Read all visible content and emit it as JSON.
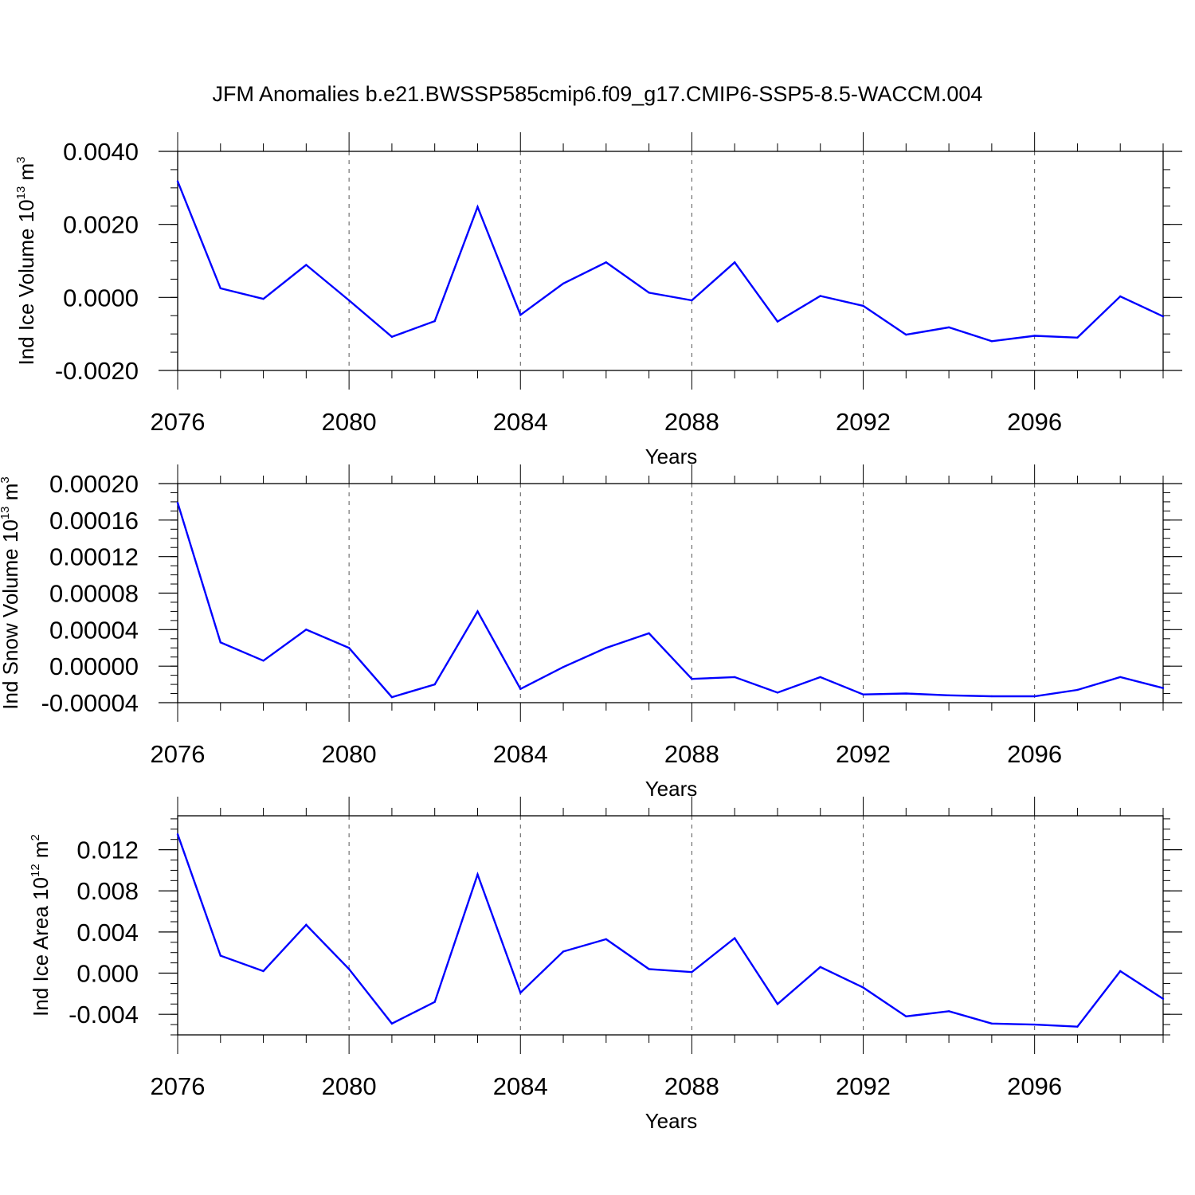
{
  "figure_title": "JFM Anomalies b.e21.BWSSP585cmip6.f09_g17.CMIP6-SSP5-8.5-WACCM.004",
  "line_color": "#0000ff",
  "chart_data": [
    {
      "type": "line",
      "xlabel": "Years",
      "ylabel_parts": {
        "text": "Ind Ice Volume 10",
        "exp": "13",
        "unit": " m",
        "unit_exp": "3"
      },
      "x": [
        2076,
        2077,
        2078,
        2079,
        2080,
        2081,
        2082,
        2083,
        2084,
        2085,
        2086,
        2087,
        2088,
        2089,
        2090,
        2091,
        2092,
        2093,
        2094,
        2095,
        2096,
        2097,
        2098,
        2099
      ],
      "values": [
        0.00318,
        0.00025,
        -4e-05,
        0.00089,
        -8e-05,
        -0.00108,
        -0.00065,
        0.00248,
        -0.00048,
        0.00038,
        0.00096,
        0.00013,
        -8e-05,
        0.00096,
        -0.00066,
        4e-05,
        -0.00023,
        -0.00102,
        -0.00082,
        -0.0012,
        -0.00105,
        -0.0011,
        3e-05,
        -0.00052
      ],
      "xlim": [
        2076,
        2099
      ],
      "ylim": [
        -0.002,
        0.004
      ],
      "xticks": [
        "2076",
        "2080",
        "2084",
        "2088",
        "2092",
        "2096"
      ],
      "yticks": [
        "0.0040",
        "0.0020",
        "0.0000",
        "-0.0020"
      ],
      "ytick_values": [
        0.004,
        0.002,
        0.0,
        -0.002
      ],
      "yminor_step": 0.0005
    },
    {
      "type": "line",
      "xlabel": "Years",
      "ylabel_parts": {
        "text": "Ind Snow Volume 10",
        "exp": "13",
        "unit": " m",
        "unit_exp": "3"
      },
      "x": [
        2076,
        2077,
        2078,
        2079,
        2080,
        2081,
        2082,
        2083,
        2084,
        2085,
        2086,
        2087,
        2088,
        2089,
        2090,
        2091,
        2092,
        2093,
        2094,
        2095,
        2096,
        2097,
        2098,
        2099
      ],
      "values": [
        0.000179,
        2.6e-05,
        6e-06,
        4e-05,
        2e-05,
        -3.4e-05,
        -2e-05,
        6e-05,
        -2.5e-05,
        -1e-06,
        2e-05,
        3.6e-05,
        -1.4e-05,
        -1.2e-05,
        -2.9e-05,
        -1.2e-05,
        -3.1e-05,
        -3e-05,
        -3.2e-05,
        -3.3e-05,
        -3.3e-05,
        -2.6e-05,
        -1.2e-05,
        -2.4e-05
      ],
      "xlim": [
        2076,
        2099
      ],
      "ylim": [
        -4e-05,
        0.0002
      ],
      "xticks": [
        "2076",
        "2080",
        "2084",
        "2088",
        "2092",
        "2096"
      ],
      "yticks": [
        "0.00020",
        "0.00016",
        "0.00012",
        "0.00008",
        "0.00004",
        "0.00000",
        "-0.00004"
      ],
      "ytick_values": [
        0.0002,
        0.00016,
        0.00012,
        8e-05,
        4e-05,
        0.0,
        -4e-05
      ],
      "yminor_step": 1e-05
    },
    {
      "type": "line",
      "xlabel": "Years",
      "ylabel_parts": {
        "text": "Ind Ice Area 10",
        "exp": "12",
        "unit": " m",
        "unit_exp": "2"
      },
      "x": [
        2076,
        2077,
        2078,
        2079,
        2080,
        2081,
        2082,
        2083,
        2084,
        2085,
        2086,
        2087,
        2088,
        2089,
        2090,
        2091,
        2092,
        2093,
        2094,
        2095,
        2096,
        2097,
        2098,
        2099
      ],
      "values": [
        0.0135,
        0.0017,
        0.0002,
        0.0047,
        0.0004,
        -0.0049,
        -0.0028,
        0.0096,
        -0.0019,
        0.0021,
        0.0033,
        0.0004,
        0.0001,
        0.0034,
        -0.003,
        0.0006,
        -0.0014,
        -0.0042,
        -0.0037,
        -0.0049,
        -0.005,
        -0.0052,
        0.0002,
        -0.0025
      ],
      "xlim": [
        2076,
        2099
      ],
      "ylim": [
        -0.006,
        0.0153
      ],
      "xticks": [
        "2076",
        "2080",
        "2084",
        "2088",
        "2092",
        "2096"
      ],
      "yticks": [
        "0.012",
        "0.008",
        "0.004",
        "0.000",
        "-0.004"
      ],
      "ytick_values": [
        0.012,
        0.008,
        0.004,
        0.0,
        -0.004
      ],
      "yminor_step": 0.001
    }
  ]
}
